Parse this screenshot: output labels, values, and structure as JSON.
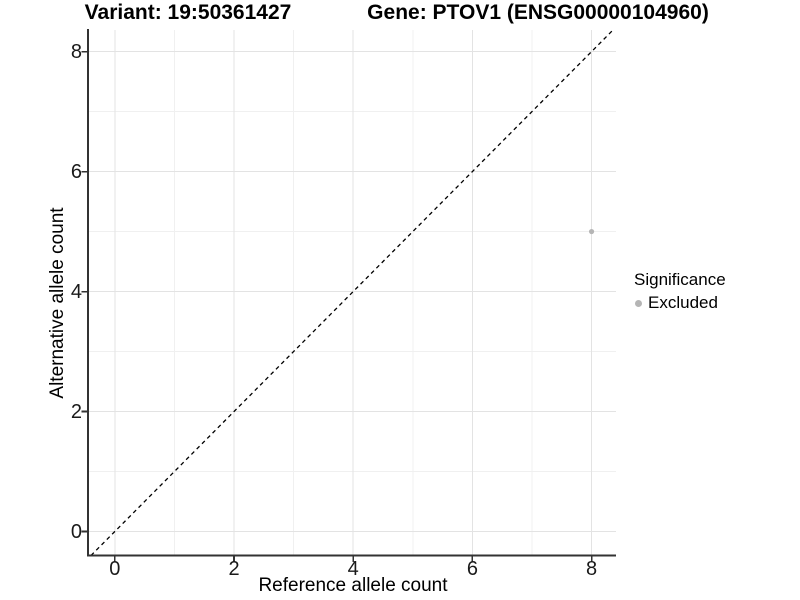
{
  "titles": {
    "variant_title": "Variant: 19:50361427",
    "gene_title": "Gene: PTOV1 (ENSG00000104960)"
  },
  "axes": {
    "x": {
      "title": "Reference allele count",
      "tick_labels": [
        "0",
        "2",
        "4",
        "6",
        "8"
      ]
    },
    "y": {
      "title": "Alternative allele count",
      "tick_labels": [
        "0",
        "2",
        "4",
        "6",
        "8"
      ]
    }
  },
  "legend": {
    "title": "Significance",
    "items": [
      {
        "label": "Excluded",
        "color": "#b5b5b5"
      }
    ]
  },
  "colors": {
    "background": "#ffffff",
    "grid_major": "#e3e3e3",
    "grid_minor": "#f0f0f0",
    "axis_line": "#333333",
    "tick_text": "#1a1a1a",
    "title_text": "#000000",
    "identity_line": "#000000",
    "point": "#b5b5b5"
  },
  "chart_data": {
    "type": "scatter",
    "title": "Variant: 19:50361427 — Gene: PTOV1 (ENSG00000104960)",
    "xlabel": "Reference allele count",
    "ylabel": "Alternative allele count",
    "xlim": [
      -0.45,
      8.41
    ],
    "ylim": [
      -0.4,
      8.36
    ],
    "x_ticks": [
      0,
      2,
      4,
      6,
      8
    ],
    "y_ticks": [
      0,
      2,
      4,
      6,
      8
    ],
    "minor_grid_step": 1,
    "grid": "major and minor light-gray gridlines at every integer on white background",
    "series": [
      {
        "name": "Excluded",
        "color": "#b5b5b5",
        "marker": "circle",
        "points": [
          {
            "x": 8,
            "y": 5
          }
        ]
      }
    ],
    "reference_line": {
      "kind": "identity y = x",
      "style": "dashed",
      "color": "#000000"
    },
    "legend_title": "Significance",
    "legend_position": "right-center"
  }
}
